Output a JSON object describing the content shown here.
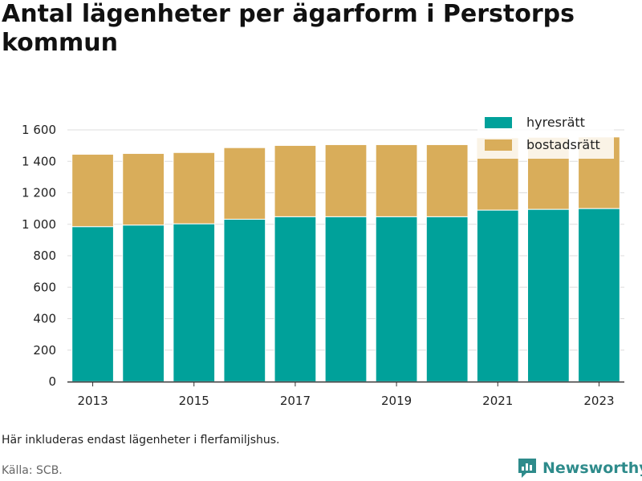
{
  "title": "Antal lägenheter per ägarform i Perstorps kommun",
  "footnote": "Här inkluderas endast lägenheter i flerfamiljshus.",
  "source": "Källa: SCB.",
  "brand": "Newsworthy",
  "colors": {
    "hyresratt": "#00a19a",
    "bostadsratt": "#d9ad5a",
    "grid": "#dddddd",
    "axis": "#333333",
    "brand": "#2e8b8b"
  },
  "chart_data": {
    "type": "bar",
    "stacked": true,
    "categories": [
      "2013",
      "2014",
      "2015",
      "2016",
      "2017",
      "2018",
      "2019",
      "2020",
      "2021",
      "2022",
      "2023"
    ],
    "x_tick_labels": [
      "2013",
      "2015",
      "2017",
      "2019",
      "2021",
      "2023"
    ],
    "y_tick_labels": [
      "0",
      "200",
      "400",
      "600",
      "800",
      "1 000",
      "1 200",
      "1 400",
      "1 600"
    ],
    "y_ticks": [
      0,
      200,
      400,
      600,
      800,
      1000,
      1200,
      1400,
      1600
    ],
    "ylim": [
      0,
      1600
    ],
    "series": [
      {
        "name": "hyresrätt",
        "color": "#00a19a",
        "values": [
          985,
          995,
          1003,
          1032,
          1048,
          1048,
          1048,
          1048,
          1090,
          1095,
          1100
        ]
      },
      {
        "name": "bostadsrätt",
        "color": "#d9ad5a",
        "values": [
          460,
          455,
          453,
          455,
          453,
          458,
          458,
          458,
          460,
          458,
          455
        ]
      }
    ],
    "legend_position": "top-right",
    "grid": true
  }
}
